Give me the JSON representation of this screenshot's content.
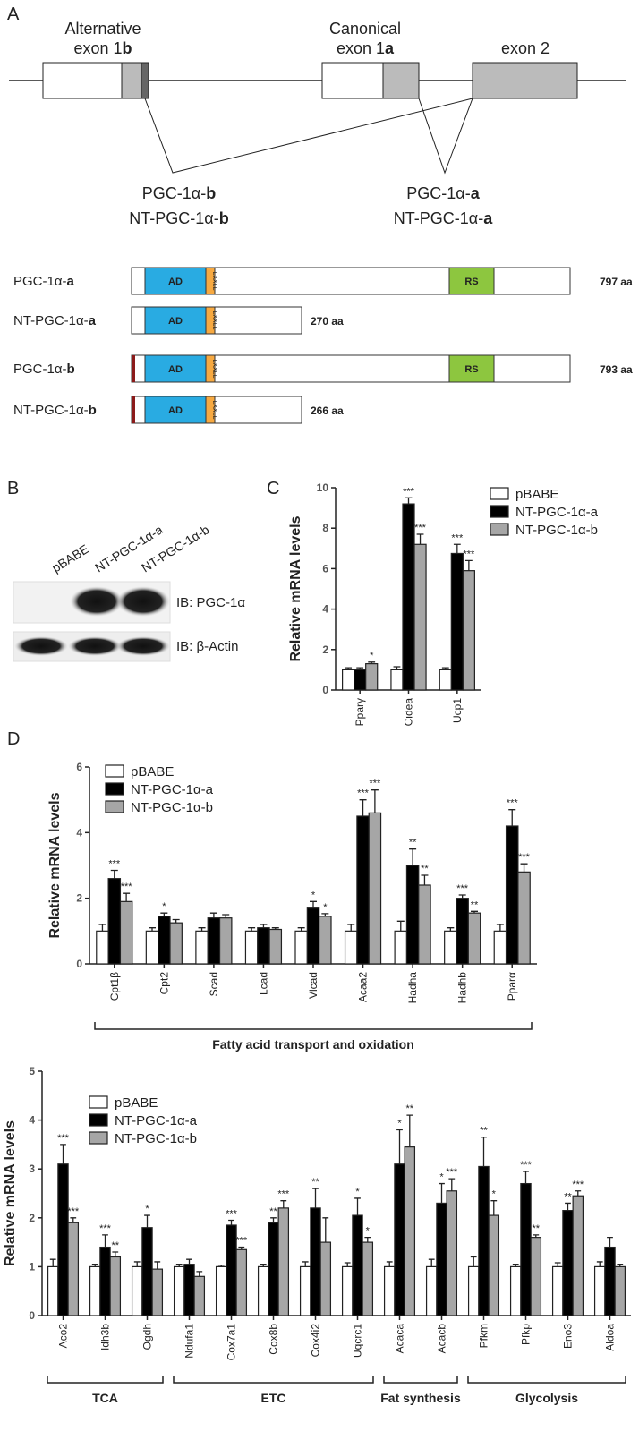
{
  "panel_labels": {
    "a": "A",
    "b": "B",
    "c": "C",
    "d": "D"
  },
  "gene_diagram": {
    "exons": [
      {
        "line1": "Alternative",
        "line2": "exon 1",
        "bold": "b"
      },
      {
        "line1": "Canonical",
        "line2": "exon 1",
        "bold": "a"
      },
      {
        "line2": "exon 2"
      }
    ],
    "transcripts": [
      {
        "lines": [
          {
            "text": "PGC-1α-",
            "bold": "b"
          },
          {
            "text": "NT-PGC-1α-",
            "bold": "b"
          }
        ]
      },
      {
        "lines": [
          {
            "text": "PGC-1α-",
            "bold": "a"
          },
          {
            "text": "NT-PGC-1α-",
            "bold": "a"
          }
        ]
      }
    ]
  },
  "proteins": [
    {
      "name": {
        "text": "PGC-1α-",
        "bold": "a"
      },
      "ad": "AD",
      "motif": "LXXLL",
      "rs": "RS",
      "length": "797 aa"
    },
    {
      "name": {
        "text": "NT-PGC-1α-",
        "bold": "a"
      },
      "ad": "AD",
      "motif": "LXXLL",
      "length": "270 aa"
    },
    {
      "name": {
        "text": "PGC-1α-",
        "bold": "b"
      },
      "ad": "AD",
      "motif": "LXXLL",
      "rs": "RS",
      "length": "793 aa"
    },
    {
      "name": {
        "text": "NT-PGC-1α-",
        "bold": "b"
      },
      "ad": "AD",
      "motif": "LXXLL",
      "length": "266 aa"
    }
  ],
  "blot": {
    "lanes": [
      "pBABE",
      "NT-PGC-1α-a",
      "NT-PGC-1α-b"
    ],
    "probes": [
      "IB: PGC-1α",
      "IB: β-Actin"
    ]
  },
  "chart_data": [
    {
      "type": "bar",
      "y_label": "Relative mRNA levels",
      "legend": "right",
      "categories": [
        "Pparγ",
        "Cidea",
        "Ucp1"
      ],
      "ylim": [
        0,
        10
      ],
      "yticks": [
        0,
        2,
        4,
        6,
        8,
        10
      ],
      "series": [
        {
          "name": "pBABE",
          "color": "#ffffff",
          "values": [
            1,
            1,
            1
          ],
          "errors": [
            0.1,
            0.15,
            0.1
          ]
        },
        {
          "name": "NT-PGC-1α-a",
          "color": "#000000",
          "values": [
            1.0,
            9.2,
            6.75
          ],
          "errors": [
            0.1,
            0.3,
            0.45
          ],
          "significance": [
            null,
            "***",
            "***"
          ]
        },
        {
          "name": "NT-PGC-1α-b",
          "color": "#a6a6a6",
          "values": [
            1.3,
            7.2,
            5.9
          ],
          "errors": [
            0.08,
            0.5,
            0.5
          ],
          "significance": [
            "*",
            "***",
            "***"
          ]
        }
      ]
    },
    {
      "type": "bar",
      "y_label": "Relative mRNA levels",
      "legend": "upper left",
      "category_groups": [
        {
          "label": "Fatty acid transport and oxidation",
          "categories": [
            "Cpt1β",
            "Cpt2",
            "Scad",
            "Lcad",
            "Vlcad",
            "Acaa2",
            "Hadha",
            "Hadhb",
            "Pparα"
          ]
        }
      ],
      "ylim": [
        0,
        6
      ],
      "yticks": [
        0,
        2,
        4,
        6
      ],
      "series": [
        {
          "name": "pBABE",
          "color": "#ffffff",
          "values": [
            1,
            1,
            1,
            1,
            1,
            1,
            1,
            1,
            1
          ],
          "errors": [
            0.2,
            0.1,
            0.1,
            0.1,
            0.1,
            0.2,
            0.3,
            0.1,
            0.2
          ]
        },
        {
          "name": "NT-PGC-1α-a",
          "color": "#000000",
          "values": [
            2.6,
            1.45,
            1.4,
            1.1,
            1.7,
            4.5,
            3.0,
            2.0,
            4.2
          ],
          "errors": [
            0.25,
            0.1,
            0.15,
            0.1,
            0.2,
            0.5,
            0.5,
            0.1,
            0.5
          ],
          "significance": [
            "***",
            "*",
            null,
            null,
            "*",
            "***",
            "**",
            "***",
            "***"
          ]
        },
        {
          "name": "NT-PGC-1α-b",
          "color": "#a6a6a6",
          "values": [
            1.9,
            1.25,
            1.4,
            1.05,
            1.45,
            4.6,
            2.4,
            1.55,
            2.8
          ],
          "errors": [
            0.25,
            0.1,
            0.1,
            0.05,
            0.08,
            0.7,
            0.3,
            0.05,
            0.25
          ],
          "significance": [
            "***",
            null,
            null,
            null,
            "*",
            "***",
            "**",
            "**",
            "***"
          ]
        }
      ]
    },
    {
      "type": "bar",
      "y_label": "Relative mRNA levels",
      "legend": "upper left",
      "category_groups": [
        {
          "label": "TCA",
          "categories": [
            "Aco2",
            "Idh3b",
            "Ogdh"
          ]
        },
        {
          "label": "ETC",
          "categories": [
            "Ndufa1",
            "Cox7a1",
            "Cox8b",
            "Cox4i2",
            "Uqcrc1"
          ]
        },
        {
          "label": "Fat synthesis",
          "categories": [
            "Acaca",
            "Acacb"
          ]
        },
        {
          "label": "Glycolysis",
          "categories": [
            "Pfkm",
            "Pfkp",
            "Eno3",
            "Aldoa"
          ]
        }
      ],
      "ylim": [
        0,
        5
      ],
      "yticks": [
        0,
        1,
        2,
        3,
        4,
        5
      ],
      "series": [
        {
          "name": "pBABE",
          "color": "#ffffff",
          "values": [
            1,
            1,
            1,
            1,
            1,
            1,
            1,
            1,
            1,
            1,
            1,
            1,
            1,
            1
          ],
          "errors": [
            0.15,
            0.05,
            0.1,
            0.05,
            0.03,
            0.05,
            0.1,
            0.08,
            0.1,
            0.15,
            0.2,
            0.05,
            0.08,
            0.1
          ]
        },
        {
          "name": "NT-PGC-1α-a",
          "color": "#000000",
          "values": [
            3.1,
            1.4,
            1.8,
            1.05,
            1.85,
            1.9,
            2.2,
            2.05,
            3.1,
            2.3,
            3.05,
            2.7,
            2.15,
            1.4
          ],
          "errors": [
            0.4,
            0.25,
            0.25,
            0.1,
            0.1,
            0.1,
            0.4,
            0.35,
            0.7,
            0.4,
            0.6,
            0.25,
            0.15,
            0.2
          ],
          "significance": [
            "***",
            "***",
            "*",
            null,
            "***",
            "**",
            "**",
            "*",
            "*",
            "*",
            "**",
            "***",
            "**",
            null
          ]
        },
        {
          "name": "NT-PGC-1α-b",
          "color": "#a6a6a6",
          "values": [
            1.9,
            1.2,
            0.95,
            0.8,
            1.35,
            2.2,
            1.5,
            1.5,
            3.45,
            2.55,
            2.05,
            1.6,
            2.45,
            1.0
          ],
          "errors": [
            0.1,
            0.1,
            0.15,
            0.1,
            0.05,
            0.15,
            0.5,
            0.1,
            0.65,
            0.25,
            0.3,
            0.05,
            0.1,
            0.05
          ],
          "significance": [
            "***",
            "**",
            null,
            null,
            "***",
            "***",
            null,
            "*",
            "**",
            "***",
            "*",
            "**",
            "***",
            null
          ]
        }
      ]
    }
  ]
}
